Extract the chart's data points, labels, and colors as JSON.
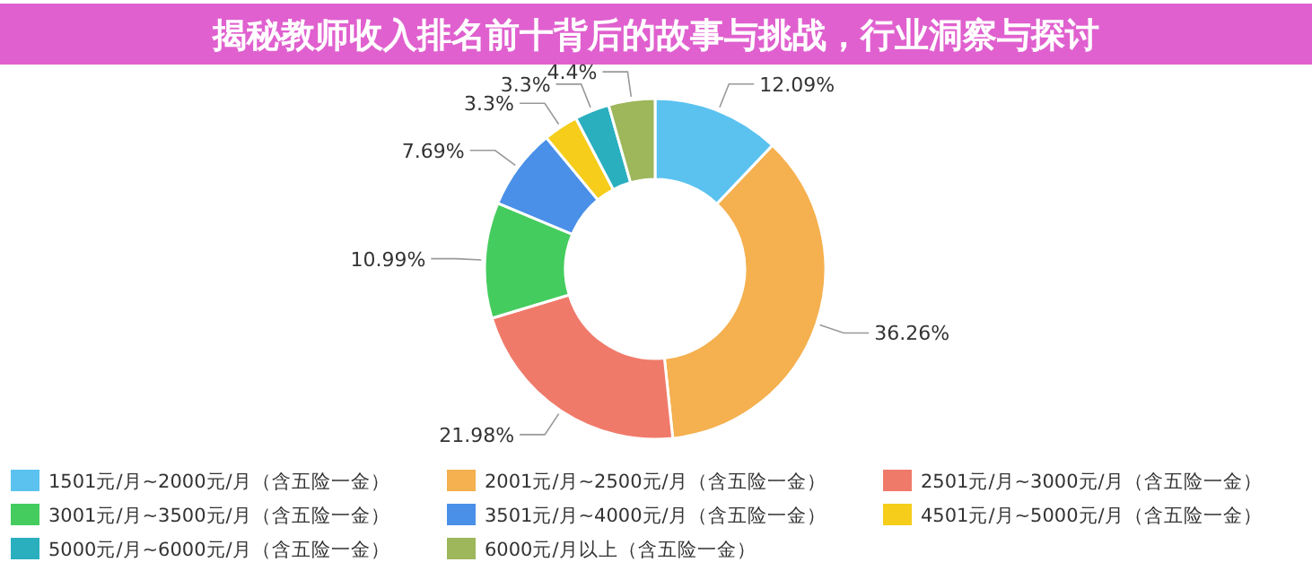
{
  "chart_data": {
    "type": "donut",
    "title": "揭秘教师收入排名前十背后的故事与挑战，行业洞察与探讨",
    "categories": [
      "1501元/月~2000元/月（含五险一金）",
      "2001元/月~2500元/月（含五险一金）",
      "2501元/月~3000元/月（含五险一金）",
      "3001元/月~3500元/月（含五险一金）",
      "3501元/月~4000元/月（含五险一金）",
      "4501元/月~5000元/月（含五险一金）",
      "5000元/月~6000元/月（含五险一金）",
      "6000元/月以上（含五险一金）"
    ],
    "values": [
      12.09,
      36.26,
      21.98,
      10.99,
      7.69,
      3.3,
      3.3,
      4.4
    ],
    "value_labels": [
      "12.09%",
      "36.26%",
      "21.98%",
      "10.99%",
      "7.69%",
      "3.3%",
      "3.3%",
      "4.4%"
    ],
    "colors": [
      "#5bc2f0",
      "#f5b04f",
      "#f07a6a",
      "#45cc5e",
      "#4a90e8",
      "#f5cd1a",
      "#2aafbf",
      "#9db75a"
    ],
    "legend": "bottom"
  }
}
